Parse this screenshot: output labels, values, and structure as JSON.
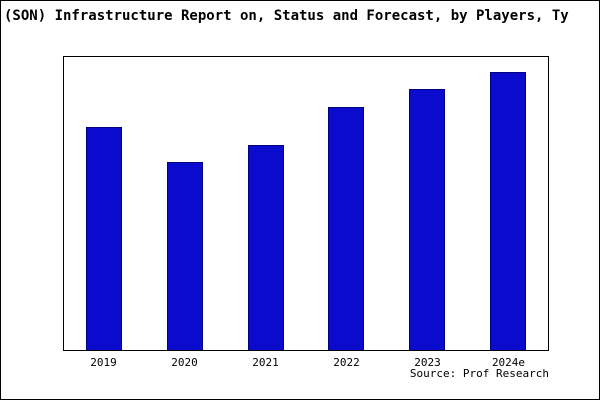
{
  "header": {
    "title": "(SON) Infrastructure Report on, Status and Forecast, by Players, Ty"
  },
  "footer": {
    "source": "Source: Prof Research"
  },
  "colors": {
    "bar_fill": "#0b0bce",
    "bar_border": "#000080",
    "plot_border": "#000000",
    "background": "#ffffff",
    "text": "#000000"
  },
  "chart_data": {
    "type": "bar",
    "title": "(SON) Infrastructure Report on, Status and Forecast, by Players, Ty",
    "categories": [
      "2019",
      "2020",
      "2021",
      "2022",
      "2023",
      "2024e"
    ],
    "values": [
      76,
      64,
      70,
      83,
      89,
      95
    ],
    "xlabel": "",
    "ylabel": "",
    "ylim": [
      0,
      100
    ],
    "grid": false,
    "legend": "none",
    "y_axis_ticks_visible": false,
    "annotation": "Source: Prof Research"
  }
}
